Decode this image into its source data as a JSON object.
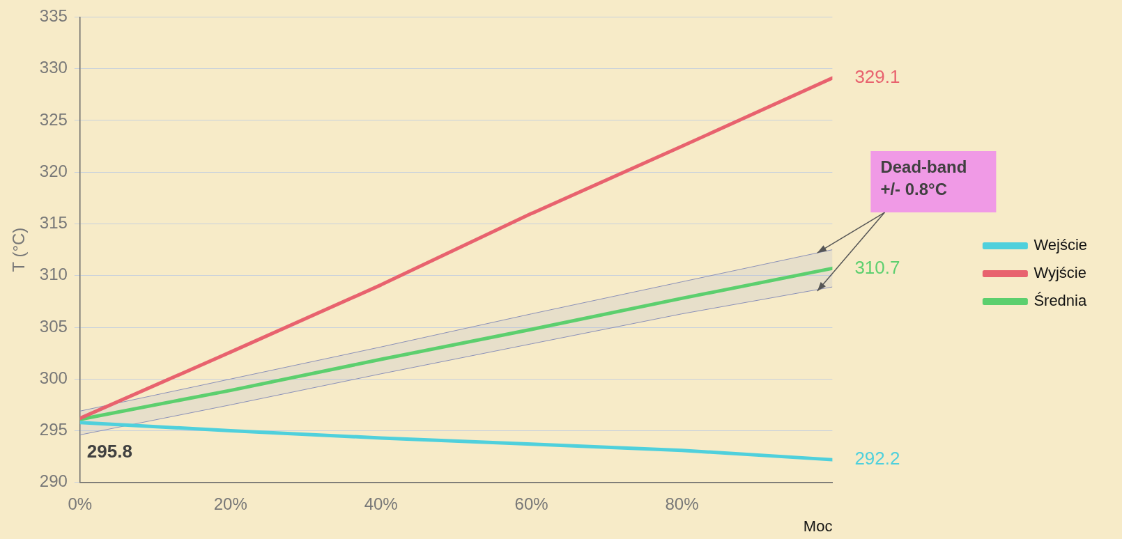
{
  "chart_data": {
    "type": "line",
    "ylabel": "T (°C)",
    "xlabel": "Moc",
    "x": [
      0,
      20,
      40,
      60,
      80,
      100
    ],
    "xlim": [
      0,
      100
    ],
    "xticks": [
      {
        "value": 0,
        "label": "0%"
      },
      {
        "value": 20,
        "label": "20%"
      },
      {
        "value": 40,
        "label": "40%"
      },
      {
        "value": 60,
        "label": "60%"
      },
      {
        "value": 80,
        "label": "80%"
      }
    ],
    "ylim": [
      290,
      335
    ],
    "yticks": [
      290,
      295,
      300,
      305,
      310,
      315,
      320,
      325,
      330,
      335
    ],
    "grid": "y",
    "legend": "right",
    "marker": "none",
    "line_style": "solid",
    "series": [
      {
        "name": "Wejście",
        "color": "#4fd0dc",
        "values": [
          295.8,
          295.0,
          294.3,
          293.7,
          293.1,
          292.2
        ],
        "value_labels": [
          null,
          null,
          null,
          null,
          null,
          "292.2"
        ]
      },
      {
        "name": "Wyjście",
        "color": "#e8626e",
        "values": [
          296.2,
          302.6,
          309.1,
          316.0,
          322.5,
          329.1
        ],
        "value_labels": [
          null,
          null,
          null,
          null,
          null,
          "329.1"
        ]
      },
      {
        "name": "Średnia",
        "color": "#5ccf6e",
        "values": [
          296.1,
          298.9,
          301.9,
          304.8,
          307.8,
          310.7
        ],
        "lower": [
          294.6,
          297.5,
          300.5,
          303.4,
          306.3,
          308.9
        ],
        "upper": [
          296.9,
          300.0,
          303.1,
          306.3,
          309.4,
          312.5
        ],
        "value_labels": [
          null,
          null,
          null,
          null,
          null,
          "310.7"
        ]
      }
    ],
    "annotations": [
      {
        "text": "295.8",
        "x": 0,
        "y": 295.8
      },
      {
        "text": "Dead-band\n+/- 0.8°C",
        "x": 98,
        "y": 312.2
      }
    ]
  }
}
